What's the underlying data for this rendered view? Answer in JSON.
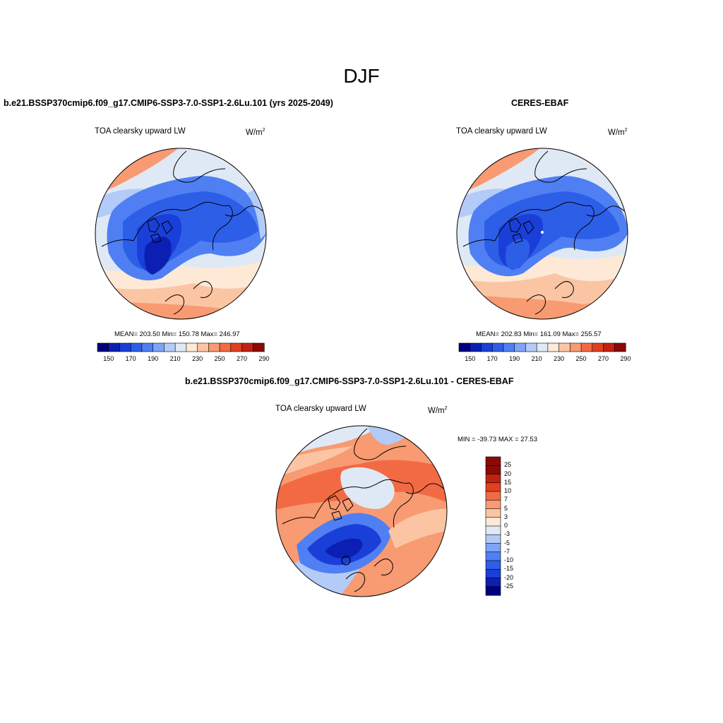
{
  "figure": {
    "title": "DJF"
  },
  "panels": [
    {
      "id": "model",
      "title": "b.e21.BSSP370cmip6.f09_g17.CMIP6-SSP3-7.0-SSP1-2.6Lu.101 (yrs 2025-2049)",
      "variable": "TOA clearsky upward LW",
      "units": "W/m",
      "units_sup": "2",
      "stats": "MEAN= 203.50  Min= 150.78  Max= 246.97"
    },
    {
      "id": "obs",
      "title": "CERES-EBAF",
      "variable": "TOA clearsky upward LW",
      "units": "W/m",
      "units_sup": "2",
      "stats": "MEAN= 202.83  Min= 161.09  Max= 255.57"
    },
    {
      "id": "diff",
      "title": "b.e21.BSSP370cmip6.f09_g17.CMIP6-SSP3-7.0-SSP1-2.6Lu.101 - CERES-EBAF",
      "variable": "TOA clearsky upward LW",
      "units": "W/m",
      "units_sup": "2",
      "stats": "MIN = -39.73 MAX =  27.53"
    }
  ],
  "colorbar_abs": {
    "colors": [
      "#00007f",
      "#0c1fb3",
      "#1a3fd8",
      "#2d5ee8",
      "#4f7ff2",
      "#7fa4f6",
      "#b3cbf7",
      "#dfe9f6",
      "#fde9d6",
      "#fbc5a3",
      "#f89a72",
      "#f26a44",
      "#e0401f",
      "#c0220f",
      "#8b0a05"
    ],
    "tick_labels": [
      "150",
      "170",
      "190",
      "210",
      "230",
      "250",
      "270",
      "290"
    ]
  },
  "colorbar_diff": {
    "colors": [
      "#8b0a05",
      "#c0220f",
      "#e0401f",
      "#f26a44",
      "#f89a72",
      "#fbc5a3",
      "#fde9d6",
      "#dfe9f6",
      "#b3cbf7",
      "#7fa4f6",
      "#4f7ff2",
      "#2d5ee8",
      "#1a3fd8",
      "#0c1fb3",
      "#00007f"
    ],
    "tick_labels": [
      "25",
      "20",
      "15",
      "10",
      "7",
      "5",
      "3",
      "0",
      "-3",
      "-5",
      "-7",
      "-10",
      "-15",
      "-20",
      "-25"
    ]
  }
}
